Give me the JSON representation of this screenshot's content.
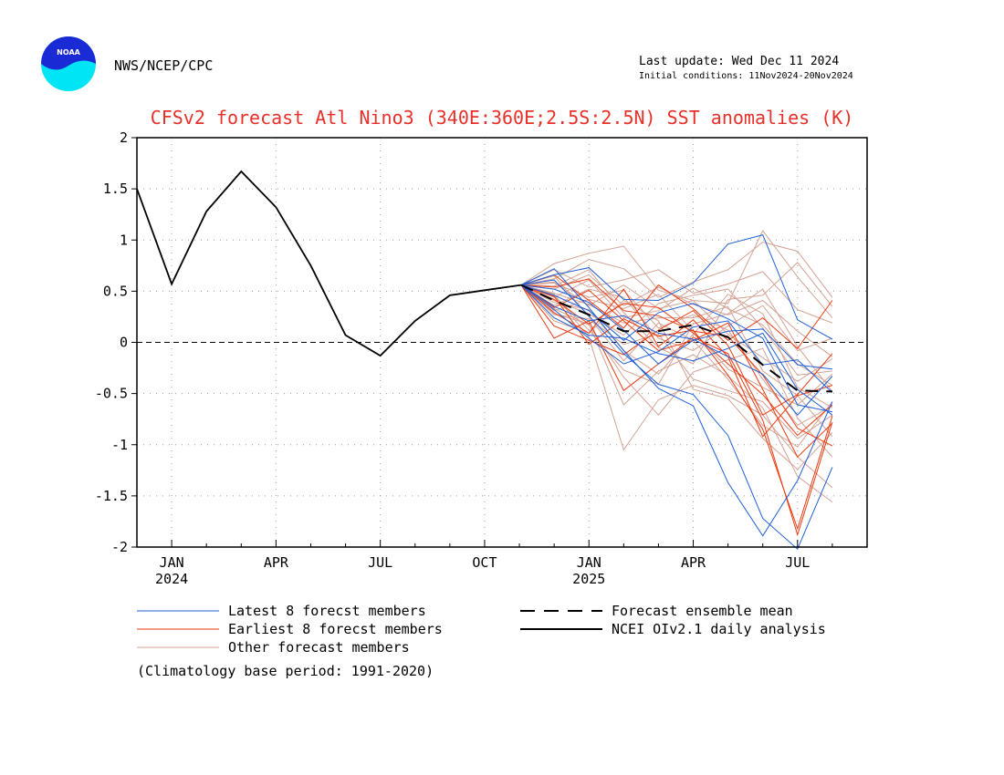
{
  "header": {
    "agency": "NWS/NCEP/CPC",
    "logo_text": "NOAA",
    "last_update": "Last update: Wed Dec 11 2024",
    "initial_conditions": "Initial conditions: 11Nov2024-20Nov2024"
  },
  "footnote": "(Climatology base period: 1991-2020)",
  "colors": {
    "latest": "#1f5fd6",
    "earliest": "#ea3a10",
    "other": "#d3a294",
    "observed": "#000000",
    "mean": "#000000",
    "title": "#e8302a"
  },
  "chart_data": {
    "type": "line",
    "title": "CFSv2 forecast Atl Nino3 (340E:360E;2.5S:2.5N) SST anomalies (K)",
    "xlim": [
      -1,
      20
    ],
    "ylim": [
      -2,
      2
    ],
    "yticks": [
      -2,
      -1.5,
      -1,
      -0.5,
      0,
      0.5,
      1,
      1.5,
      2
    ],
    "ytick_labels": [
      "-2",
      "-1.5",
      "-1",
      "-0.5",
      "0",
      "0.5",
      "1",
      "1.5",
      "2"
    ],
    "xticks": [
      {
        "x": 0,
        "label": "JAN",
        "year": "2024"
      },
      {
        "x": 3,
        "label": "APR",
        "year": ""
      },
      {
        "x": 6,
        "label": "JUL",
        "year": ""
      },
      {
        "x": 9,
        "label": "OCT",
        "year": ""
      },
      {
        "x": 12,
        "label": "JAN",
        "year": "2025"
      },
      {
        "x": 15,
        "label": "APR",
        "year": ""
      },
      {
        "x": 18,
        "label": "JUL",
        "year": ""
      }
    ],
    "grid": true,
    "legend": {
      "placement": "bottom",
      "entries": [
        {
          "label": "Latest 8 forecst members",
          "style": "latest"
        },
        {
          "label": "Earliest 8 forecst members",
          "style": "earliest"
        },
        {
          "label": "Other forecast members",
          "style": "other"
        },
        {
          "label": "Forecast ensemble mean",
          "style": "mean"
        },
        {
          "label": "NCEI OIv2.1 daily analysis",
          "style": "observed"
        }
      ]
    },
    "observed": {
      "name": "NCEI OIv2.1 daily analysis",
      "x": [
        -1,
        0,
        1,
        2,
        3,
        4,
        5,
        6,
        7,
        8,
        9,
        10.05
      ],
      "y": [
        1.5,
        0.57,
        1.28,
        1.67,
        1.32,
        0.75,
        0.07,
        -0.13,
        0.21,
        0.46,
        0.51,
        0.56
      ]
    },
    "ensemble_mean": {
      "name": "Forecast ensemble mean",
      "x": [
        10.05,
        11,
        12,
        13,
        14,
        15,
        16,
        17,
        18,
        19
      ],
      "y": [
        0.56,
        0.41,
        0.27,
        0.11,
        0.11,
        0.17,
        0.05,
        -0.22,
        -0.47,
        -0.48
      ]
    },
    "forecast_x": [
      10.05,
      11,
      12,
      13,
      14,
      15,
      16,
      17,
      18,
      19
    ],
    "latest_members": [
      [
        0.56,
        0.72,
        0.34,
        -0.08,
        -0.45,
        -0.62,
        -1.37,
        -1.89,
        -1.35,
        -0.58
      ],
      [
        0.56,
        0.61,
        0.26,
        -0.11,
        -0.41,
        -0.51,
        -0.91,
        -1.72,
        -2.02,
        -1.22
      ],
      [
        0.56,
        0.66,
        0.73,
        0.42,
        0.41,
        0.58,
        0.96,
        1.05,
        0.22,
        0.03
      ],
      [
        0.56,
        0.52,
        0.39,
        0.12,
        -0.21,
        0.02,
        0.11,
        0.13,
        -0.22,
        -0.26
      ],
      [
        0.56,
        0.46,
        0.31,
        0.02,
        0.29,
        0.38,
        0.23,
        0.04,
        -0.61,
        -0.68
      ],
      [
        0.56,
        0.32,
        0.04,
        -0.21,
        -0.09,
        0.15,
        0.21,
        -0.22,
        -0.17,
        -0.49
      ],
      [
        0.56,
        0.35,
        0.21,
        0.26,
        0.09,
        0.03,
        -0.14,
        -0.31,
        -0.71,
        -0.33
      ],
      [
        0.56,
        0.24,
        0.07,
        0.04,
        -0.11,
        -0.18,
        -0.06,
        0.09,
        -0.46,
        -0.71
      ]
    ],
    "earliest_members": [
      [
        0.56,
        0.45,
        -0.02,
        0.23,
        0.06,
        0.12,
        -0.32,
        -0.85,
        -1.82,
        -0.72
      ],
      [
        0.56,
        0.04,
        0.21,
        -0.47,
        -0.21,
        0.05,
        -0.11,
        -0.76,
        -1.88,
        -0.78
      ],
      [
        0.56,
        0.66,
        0.41,
        0.14,
        0.56,
        0.33,
        0.02,
        0.24,
        -0.06,
        0.41
      ],
      [
        0.56,
        0.54,
        0.62,
        0.31,
        0.26,
        0.11,
        0.06,
        -0.32,
        -0.84,
        -1.01
      ],
      [
        0.56,
        0.16,
        0.02,
        -0.12,
        0.12,
        0.31,
        -0.03,
        -0.71,
        -0.51,
        -0.11
      ],
      [
        0.56,
        0.42,
        0.18,
        0.38,
        0.34,
        0.09,
        -0.21,
        -0.51,
        -0.91,
        -0.61
      ],
      [
        0.56,
        0.34,
        0.51,
        0.21,
        -0.08,
        0.02,
        0.19,
        -0.46,
        -1.12,
        -0.79
      ],
      [
        0.56,
        0.29,
        0.09,
        0.52,
        -0.04,
        0.22,
        -0.14,
        -0.92,
        -0.52,
        -0.42
      ]
    ],
    "other_members": [
      [
        0.56,
        0.77,
        0.87,
        0.94,
        0.51,
        0.41,
        0.38,
        1.09,
        0.64,
        0.24
      ],
      [
        0.56,
        0.62,
        0.81,
        0.72,
        0.44,
        0.59,
        0.71,
        0.98,
        0.89,
        0.44
      ],
      [
        0.56,
        0.71,
        0.54,
        0.61,
        0.71,
        0.48,
        0.57,
        0.69,
        0.32,
        0.19
      ],
      [
        0.56,
        0.52,
        0.66,
        0.36,
        0.54,
        0.37,
        0.27,
        0.41,
        0.11,
        -0.14
      ],
      [
        0.56,
        0.44,
        0.61,
        0.24,
        0.31,
        0.53,
        0.33,
        0.17,
        -0.21,
        -0.42
      ],
      [
        0.56,
        0.39,
        0.32,
        -0.08,
        -0.31,
        0.08,
        0.47,
        0.28,
        -0.44,
        -0.64
      ],
      [
        0.56,
        0.33,
        0.17,
        -0.34,
        -0.71,
        -0.29,
        -0.17,
        -0.06,
        -0.74,
        -1.12
      ],
      [
        0.56,
        0.47,
        0.05,
        -1.05,
        -0.56,
        -0.42,
        -0.52,
        -0.71,
        -1.12,
        -1.42
      ],
      [
        0.56,
        0.28,
        0.18,
        -0.61,
        -0.28,
        -0.12,
        -0.33,
        -0.64,
        -1.31,
        -1.56
      ],
      [
        0.56,
        0.21,
        0.09,
        0.41,
        0.21,
        -0.46,
        -0.55,
        -0.94,
        -1.24,
        -0.88
      ],
      [
        0.56,
        0.58,
        0.44,
        0.51,
        0.14,
        0.27,
        0.12,
        -0.36,
        -0.81,
        -0.62
      ],
      [
        0.56,
        0.41,
        0.28,
        0.07,
        0.38,
        0.46,
        0.52,
        0.14,
        -0.32,
        -0.28
      ],
      [
        0.56,
        0.36,
        0.52,
        0.44,
        0.04,
        -0.08,
        0.16,
        0.36,
        -0.08,
        0.04
      ],
      [
        0.56,
        0.48,
        0.37,
        0.19,
        0.24,
        0.24,
        0.35,
        -0.28,
        -0.52,
        -0.92
      ],
      [
        0.56,
        0.65,
        0.25,
        -0.18,
        0.19,
        0.02,
        -0.36,
        -0.81,
        -1.02,
        -0.58
      ],
      [
        0.56,
        0.55,
        0.71,
        0.29,
        -0.05,
        -0.21,
        0.42,
        0.46,
        0.78,
        0.35
      ],
      [
        0.56,
        0.31,
        0.42,
        0.33,
        0.47,
        0.11,
        -0.26,
        -0.44,
        -0.61,
        -0.31
      ],
      [
        0.56,
        0.45,
        0.12,
        -0.27,
        -0.41,
        0.18,
        0.28,
        0.52,
        -0.04,
        -0.48
      ],
      [
        0.56,
        0.59,
        0.36,
        0.56,
        0.33,
        0.41,
        0.08,
        -0.15,
        -0.38,
        -0.16
      ],
      [
        0.56,
        0.27,
        0.23,
        -0.02,
        0.08,
        -0.36,
        -0.47,
        -0.58,
        -0.94,
        -0.71
      ]
    ]
  }
}
